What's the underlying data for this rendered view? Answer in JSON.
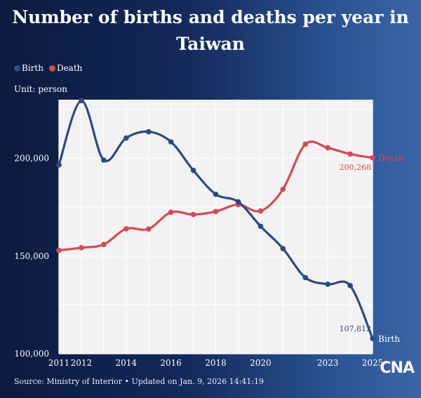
{
  "header": {
    "title": "Number of births and deaths per year in Taiwan"
  },
  "legend": {
    "birth": "Birth",
    "death": "Death"
  },
  "unit": "Unit: person",
  "source": "Source: Ministry of Interior • Updated on Jan. 9, 2026 14:41:19",
  "logo": "CNA",
  "colors": {
    "birth": "#2b4a80",
    "death": "#d9484f",
    "plot_bg": "#f2f2f2"
  },
  "chart_data": {
    "type": "line",
    "title": "Number of births and deaths per year in Taiwan",
    "ylabel": "Unit: person",
    "x": [
      2011,
      2012,
      2013,
      2014,
      2015,
      2016,
      2017,
      2018,
      2019,
      2020,
      2021,
      2022,
      2023,
      2024,
      2025
    ],
    "x_ticks": [
      "2011",
      "2012",
      "2014",
      "2016",
      "2018",
      "2020",
      "2023",
      "2025"
    ],
    "y_ticks": [
      "100,000",
      "150,000",
      "200,000"
    ],
    "ylim": [
      100000,
      230000
    ],
    "series": [
      {
        "name": "Birth",
        "values": [
          196627,
          229481,
          199113,
          210383,
          213598,
          208440,
          193844,
          181601,
          177767,
          165249,
          153820,
          138986,
          135571,
          134856,
          107812
        ]
      },
      {
        "name": "Death",
        "values": [
          152915,
          154251,
          155908,
          163929,
          163858,
          172405,
          171242,
          172784,
          176296,
          173067,
          184172,
          207230,
          205368,
          202174,
          200268
        ]
      }
    ],
    "annotations": {
      "birth_last": "107,812",
      "death_last": "200,268"
    }
  }
}
